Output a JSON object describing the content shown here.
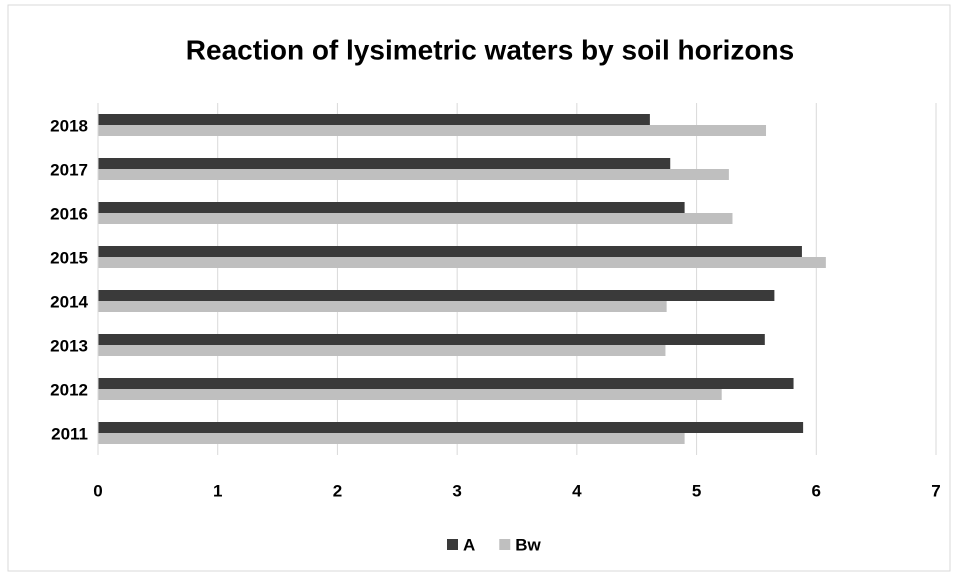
{
  "chart_data": {
    "type": "bar",
    "orientation": "horizontal",
    "title": "Reaction of lysimetric waters by soil horizons",
    "categories": [
      "2011",
      "2012",
      "2013",
      "2014",
      "2015",
      "2016",
      "2017",
      "2018"
    ],
    "series": [
      {
        "name": "A",
        "color": "#3a3a3a",
        "values": [
          5.89,
          5.81,
          5.57,
          5.65,
          5.88,
          4.9,
          4.78,
          4.61
        ]
      },
      {
        "name": "Bw",
        "color": "#bfbfbf",
        "values": [
          4.9,
          5.21,
          4.74,
          4.75,
          6.08,
          5.3,
          5.27,
          5.58
        ]
      }
    ],
    "xlim": [
      0,
      7
    ],
    "xticks": [
      0,
      1,
      2,
      3,
      4,
      5,
      6,
      7
    ],
    "grid": true,
    "legend": "bottom"
  }
}
